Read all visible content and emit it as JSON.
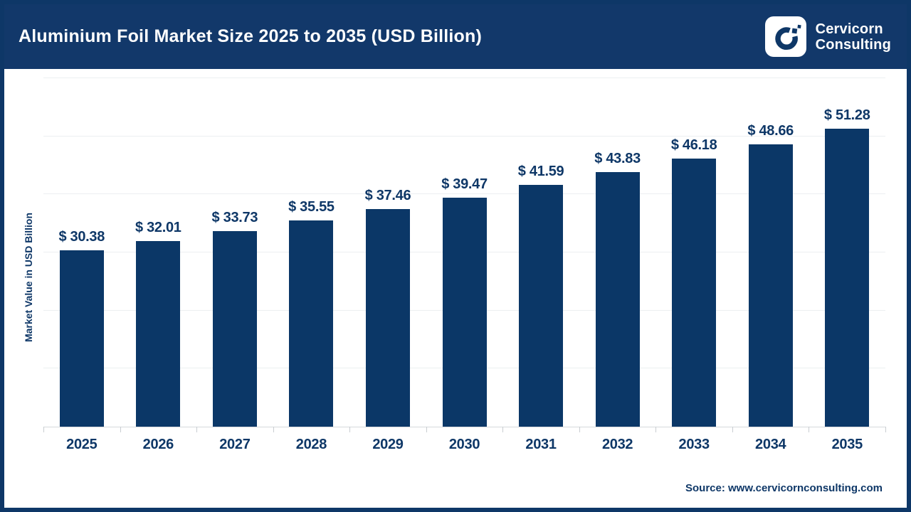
{
  "header": {
    "title": "Aluminium Foil Market Size 2025 to 2035 (USD Billion)",
    "logo": {
      "line1": "Cervicorn",
      "line2": "Consulting"
    }
  },
  "chart_data": {
    "type": "bar",
    "title": "Aluminium Foil Market Size 2025 to 2035 (USD Billion)",
    "categories": [
      "2025",
      "2026",
      "2027",
      "2028",
      "2029",
      "2030",
      "2031",
      "2032",
      "2033",
      "2034",
      "2035"
    ],
    "values": [
      30.38,
      32.01,
      33.73,
      35.55,
      37.46,
      39.47,
      41.59,
      43.83,
      46.18,
      48.66,
      51.28
    ],
    "bar_labels": [
      "$ 30.38",
      "$ 32.01",
      "$ 33.73",
      "$ 35.55",
      "$ 37.46",
      "$ 39.47",
      "$ 41.59",
      "$ 43.83",
      "$ 46.18",
      "$ 48.66",
      "$ 51.28"
    ],
    "xlabel": "",
    "ylabel": "Market Value in USD Billion",
    "ylim": [
      0,
      60
    ],
    "gridline_step": 10,
    "grid": "horizontal",
    "y_tick_labels_visible": false,
    "legend": "none",
    "bar_color": "#0b3767"
  },
  "footer": {
    "source": "Source: www.cervicornconsulting.com"
  },
  "colors": {
    "navy": "#0e3767",
    "header_bg": "#12386a",
    "border": "#0e3767",
    "gridline": "#eceff1",
    "axis": "#d6d9dc",
    "title_text": "#ffffff"
  }
}
